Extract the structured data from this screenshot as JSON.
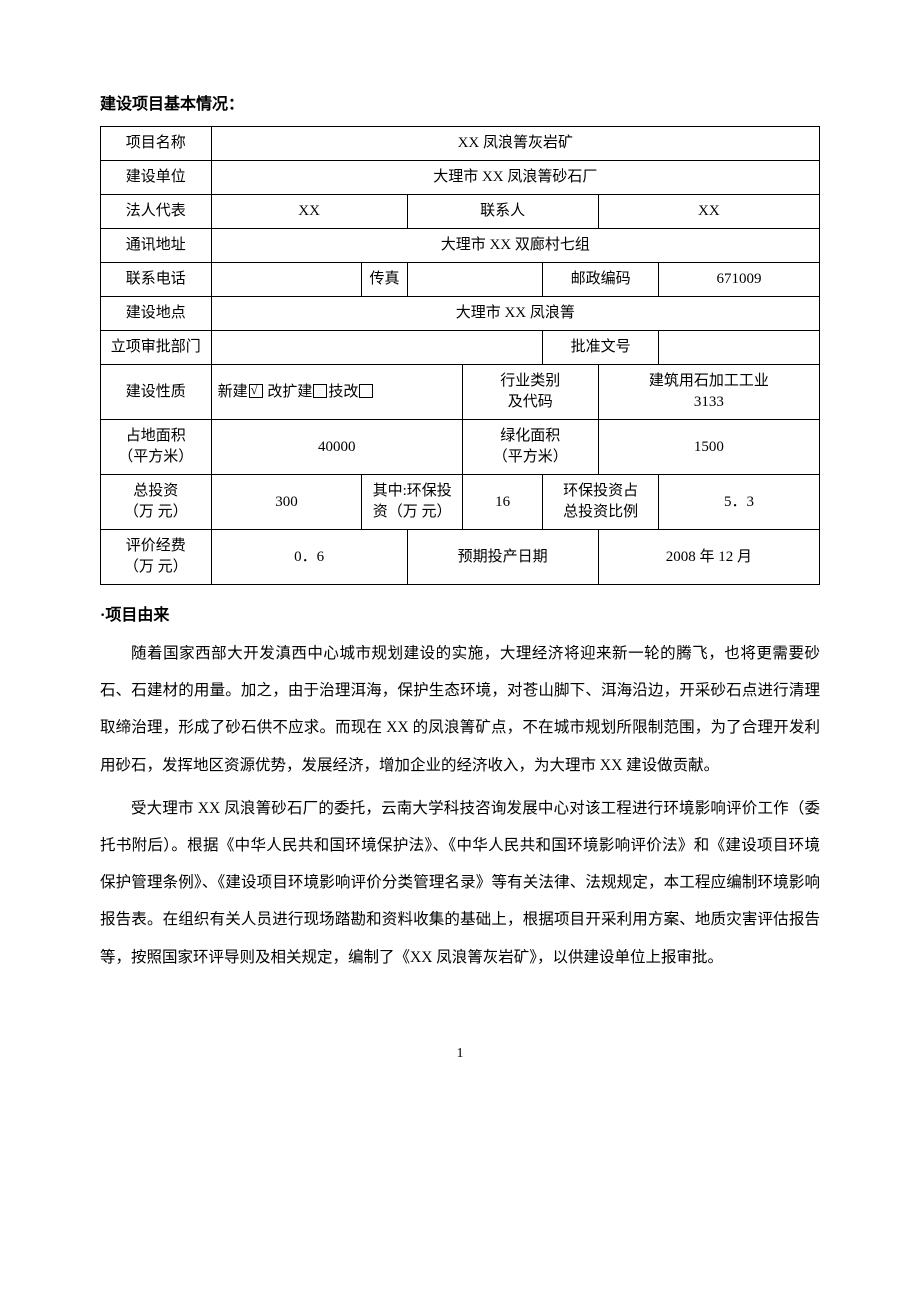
{
  "heading": "建设项目基本情况：",
  "labels": {
    "project_name": "项目名称",
    "build_unit": "建设单位",
    "legal_rep": "法人代表",
    "contact": "联系人",
    "address": "通讯地址",
    "phone": "联系电话",
    "fax": "传真",
    "postcode": "邮政编码",
    "build_location": "建设地点",
    "approval_dept": "立项审批部门",
    "approval_no": "批准文号",
    "build_nature": "建设性质",
    "industry_code": "行业类别\n及代码",
    "land_area": "占地面积\n（平方米）",
    "green_area": "绿化面积\n（平方米）",
    "total_invest": "总投资\n（万 元）",
    "env_invest": "其中:环保投\n资（万 元）",
    "env_ratio": "环保投资占\n总投资比例",
    "eval_fee": "评价经费\n（万 元）",
    "expected_date": "预期投产日期"
  },
  "values": {
    "project_name": "XX 凤浪箐灰岩矿",
    "build_unit": "大理市 XX 凤浪箐砂石厂",
    "legal_rep": "XX",
    "contact_person": "XX",
    "address": "大理市 XX 双廊村七组",
    "phone": "",
    "fax": "",
    "postcode": "671009",
    "build_location": "大理市 XX 凤浪箐",
    "approval_dept": "",
    "approval_no": "",
    "nature_new": "新建",
    "nature_expand": " 改扩建",
    "nature_tech": "技改",
    "industry_code": "建筑用石加工工业\n3133",
    "land_area": "40000",
    "green_area": "1500",
    "total_invest": "300",
    "env_invest": "16",
    "env_ratio": "5．3",
    "eval_fee": "0．6",
    "expected_date": "2008 年 12 月"
  },
  "section_title": "·项目由来",
  "paragraphs": {
    "p1": "随着国家西部大开发滇西中心城市规划建设的实施，大理经济将迎来新一轮的腾飞，也将更需要砂石、石建材的用量。加之，由于治理洱海，保护生态环境，对苍山脚下、洱海沿边，开采砂石点进行清理取缔治理，形成了砂石供不应求。而现在 XX 的凤浪箐矿点，不在城市规划所限制范围，为了合理开发利用砂石，发挥地区资源优势，发展经济，增加企业的经济收入，为大理市 XX 建设做贡献。",
    "p2": "受大理市 XX 凤浪箐砂石厂的委托，云南大学科技咨询发展中心对该工程进行环境影响评价工作（委托书附后）。根据《中华人民共和国环境保护法》、《中华人民共和国环境影响评价法》和《建设项目环境保护管理条例》、《建设项目环境影响评价分类管理名录》等有关法律、法规规定，本工程应编制环境影响报告表。在组织有关人员进行现场踏勘和资料收集的基础上，根据项目开采利用方案、地质灾害评估报告等，按照国家环评导则及相关规定，编制了《XX 凤浪箐灰岩矿》，以供建设单位上报审批。"
  },
  "page_number": "1"
}
